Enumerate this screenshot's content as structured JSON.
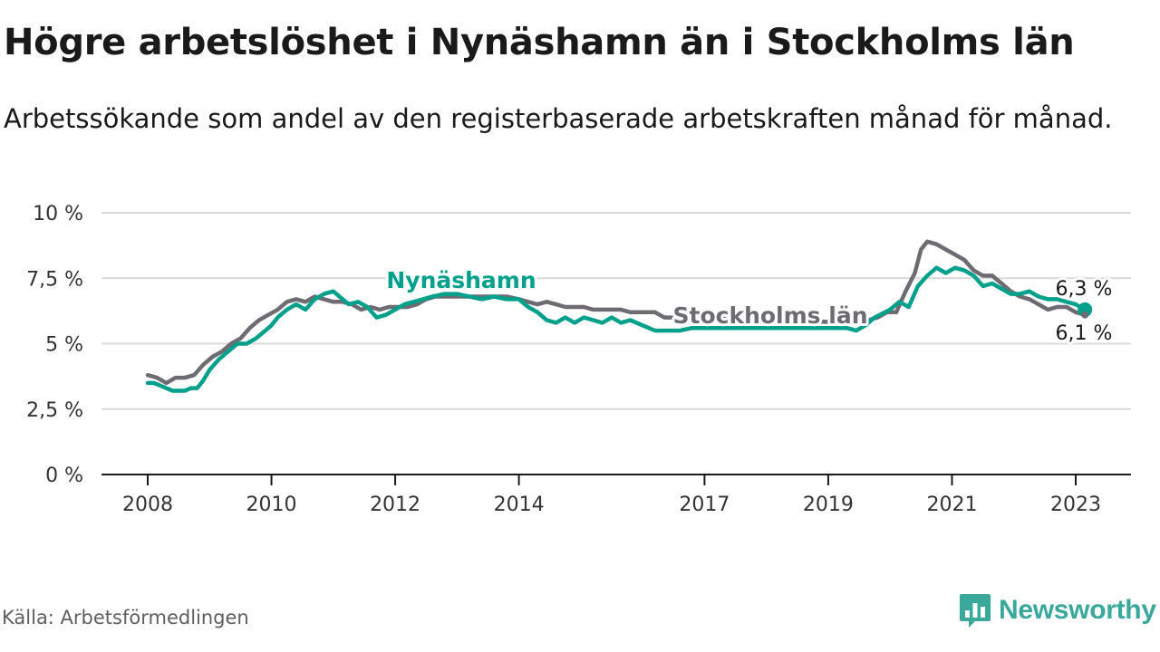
{
  "title": "Högre arbetslöshet i Nynäshamn än i Stockholms län",
  "subtitle": "Arbetssökande som andel av den registerbaserade arbetskraften månad för månad.",
  "source": "Källa: Arbetsförmedlingen",
  "brand": {
    "name": "Newsworthy",
    "icon": "bar-chart-icon"
  },
  "colors": {
    "nynashamn": "#00a08a",
    "stockholm": "#6e6b73",
    "grid": "#d9d9d9",
    "axis": "#1a1a1a",
    "brand": "#3aa99c"
  },
  "chart_data": {
    "type": "line",
    "ylim": [
      0,
      10
    ],
    "y_ticks": [
      0,
      2.5,
      5,
      7.5,
      10
    ],
    "y_tick_labels": [
      "0 %",
      "2,5 %",
      "5 %",
      "7,5 %",
      "10 %"
    ],
    "x_range": [
      2008,
      2023.25
    ],
    "x_ticks": [
      2008,
      2010,
      2012,
      2014,
      2017,
      2019,
      2021,
      2023
    ],
    "x_tick_labels": [
      "2008",
      "2010",
      "2012",
      "2014",
      "2017",
      "2019",
      "2021",
      "2023"
    ],
    "grid": true,
    "series": [
      {
        "name": "Nynäshamn",
        "label": "Nynäshamn",
        "end_label": "6,3 %",
        "points": [
          [
            2008,
            3.5
          ],
          [
            2008.1,
            3.5
          ],
          [
            2008.2,
            3.4
          ],
          [
            2008.3,
            3.3
          ],
          [
            2008.4,
            3.2
          ],
          [
            2008.5,
            3.2
          ],
          [
            2008.6,
            3.2
          ],
          [
            2008.7,
            3.3
          ],
          [
            2008.8,
            3.3
          ],
          [
            2008.9,
            3.6
          ],
          [
            2009,
            4.0
          ],
          [
            2009.15,
            4.4
          ],
          [
            2009.3,
            4.7
          ],
          [
            2009.45,
            5.0
          ],
          [
            2009.6,
            5.0
          ],
          [
            2009.75,
            5.2
          ],
          [
            2009.9,
            5.5
          ],
          [
            2010,
            5.7
          ],
          [
            2010.1,
            6.0
          ],
          [
            2010.25,
            6.3
          ],
          [
            2010.4,
            6.5
          ],
          [
            2010.55,
            6.3
          ],
          [
            2010.7,
            6.7
          ],
          [
            2010.85,
            6.9
          ],
          [
            2011,
            7.0
          ],
          [
            2011.1,
            6.8
          ],
          [
            2011.25,
            6.5
          ],
          [
            2011.4,
            6.6
          ],
          [
            2011.55,
            6.4
          ],
          [
            2011.7,
            6.0
          ],
          [
            2011.85,
            6.1
          ],
          [
            2012,
            6.3
          ],
          [
            2012.15,
            6.5
          ],
          [
            2012.3,
            6.6
          ],
          [
            2012.45,
            6.7
          ],
          [
            2012.6,
            6.8
          ],
          [
            2012.8,
            6.9
          ],
          [
            2013,
            6.9
          ],
          [
            2013.2,
            6.8
          ],
          [
            2013.4,
            6.7
          ],
          [
            2013.6,
            6.8
          ],
          [
            2013.8,
            6.7
          ],
          [
            2014,
            6.7
          ],
          [
            2014.15,
            6.4
          ],
          [
            2014.3,
            6.2
          ],
          [
            2014.45,
            5.9
          ],
          [
            2014.6,
            5.8
          ],
          [
            2014.75,
            6.0
          ],
          [
            2014.9,
            5.8
          ],
          [
            2015.05,
            6.0
          ],
          [
            2015.2,
            5.9
          ],
          [
            2015.35,
            5.8
          ],
          [
            2015.5,
            6.0
          ],
          [
            2015.65,
            5.8
          ],
          [
            2015.8,
            5.9
          ],
          [
            2016,
            5.7
          ],
          [
            2016.2,
            5.5
          ],
          [
            2016.4,
            5.5
          ],
          [
            2016.6,
            5.5
          ],
          [
            2016.8,
            5.6
          ],
          [
            2019.3,
            5.6
          ],
          [
            2019.45,
            5.5
          ],
          [
            2019.6,
            5.7
          ],
          [
            2019.75,
            6.0
          ],
          [
            2020,
            6.3
          ],
          [
            2020.15,
            6.6
          ],
          [
            2020.3,
            6.4
          ],
          [
            2020.45,
            7.2
          ],
          [
            2020.6,
            7.6
          ],
          [
            2020.75,
            7.9
          ],
          [
            2020.9,
            7.7
          ],
          [
            2021.05,
            7.9
          ],
          [
            2021.2,
            7.8
          ],
          [
            2021.35,
            7.6
          ],
          [
            2021.5,
            7.2
          ],
          [
            2021.65,
            7.3
          ],
          [
            2021.8,
            7.1
          ],
          [
            2021.95,
            6.9
          ],
          [
            2022.1,
            6.9
          ],
          [
            2022.25,
            7.0
          ],
          [
            2022.4,
            6.8
          ],
          [
            2022.55,
            6.7
          ],
          [
            2022.7,
            6.7
          ],
          [
            2022.85,
            6.6
          ],
          [
            2023,
            6.5
          ],
          [
            2023.15,
            6.3
          ]
        ]
      },
      {
        "name": "Stockholms län",
        "label": "Stockholms län",
        "end_label": "6,1 %",
        "points": [
          [
            2008,
            3.8
          ],
          [
            2008.15,
            3.7
          ],
          [
            2008.3,
            3.5
          ],
          [
            2008.45,
            3.7
          ],
          [
            2008.6,
            3.7
          ],
          [
            2008.75,
            3.8
          ],
          [
            2008.9,
            4.2
          ],
          [
            2009.05,
            4.5
          ],
          [
            2009.2,
            4.7
          ],
          [
            2009.35,
            5.0
          ],
          [
            2009.5,
            5.2
          ],
          [
            2009.65,
            5.6
          ],
          [
            2009.8,
            5.9
          ],
          [
            2009.95,
            6.1
          ],
          [
            2010.1,
            6.3
          ],
          [
            2010.25,
            6.6
          ],
          [
            2010.4,
            6.7
          ],
          [
            2010.55,
            6.6
          ],
          [
            2010.7,
            6.8
          ],
          [
            2010.85,
            6.7
          ],
          [
            2011,
            6.6
          ],
          [
            2011.15,
            6.6
          ],
          [
            2011.3,
            6.5
          ],
          [
            2011.45,
            6.3
          ],
          [
            2011.6,
            6.4
          ],
          [
            2011.75,
            6.3
          ],
          [
            2011.9,
            6.4
          ],
          [
            2012.05,
            6.4
          ],
          [
            2012.2,
            6.4
          ],
          [
            2012.35,
            6.5
          ],
          [
            2012.5,
            6.7
          ],
          [
            2012.65,
            6.8
          ],
          [
            2012.8,
            6.8
          ],
          [
            2013,
            6.8
          ],
          [
            2013.2,
            6.8
          ],
          [
            2013.4,
            6.8
          ],
          [
            2013.6,
            6.8
          ],
          [
            2013.8,
            6.8
          ],
          [
            2014,
            6.7
          ],
          [
            2014.15,
            6.6
          ],
          [
            2014.3,
            6.5
          ],
          [
            2014.45,
            6.6
          ],
          [
            2014.6,
            6.5
          ],
          [
            2014.75,
            6.4
          ],
          [
            2014.9,
            6.4
          ],
          [
            2015.05,
            6.4
          ],
          [
            2015.2,
            6.3
          ],
          [
            2015.35,
            6.3
          ],
          [
            2015.5,
            6.3
          ],
          [
            2015.65,
            6.3
          ],
          [
            2015.8,
            6.2
          ],
          [
            2016,
            6.2
          ],
          [
            2016.2,
            6.2
          ],
          [
            2016.35,
            6.0
          ],
          [
            2016.5,
            6.0
          ],
          [
            2019.5,
            5.8
          ],
          [
            2019.65,
            5.9
          ],
          [
            2019.8,
            6.0
          ],
          [
            2019.95,
            6.2
          ],
          [
            2020.1,
            6.2
          ],
          [
            2020.25,
            7.0
          ],
          [
            2020.4,
            7.7
          ],
          [
            2020.5,
            8.6
          ],
          [
            2020.6,
            8.9
          ],
          [
            2020.75,
            8.8
          ],
          [
            2020.9,
            8.6
          ],
          [
            2021.05,
            8.4
          ],
          [
            2021.2,
            8.2
          ],
          [
            2021.35,
            7.8
          ],
          [
            2021.5,
            7.6
          ],
          [
            2021.65,
            7.6
          ],
          [
            2021.8,
            7.3
          ],
          [
            2021.95,
            7.0
          ],
          [
            2022.1,
            6.8
          ],
          [
            2022.25,
            6.7
          ],
          [
            2022.4,
            6.5
          ],
          [
            2022.55,
            6.3
          ],
          [
            2022.7,
            6.4
          ],
          [
            2022.85,
            6.4
          ],
          [
            2023,
            6.2
          ],
          [
            2023.15,
            6.1
          ]
        ]
      }
    ]
  }
}
